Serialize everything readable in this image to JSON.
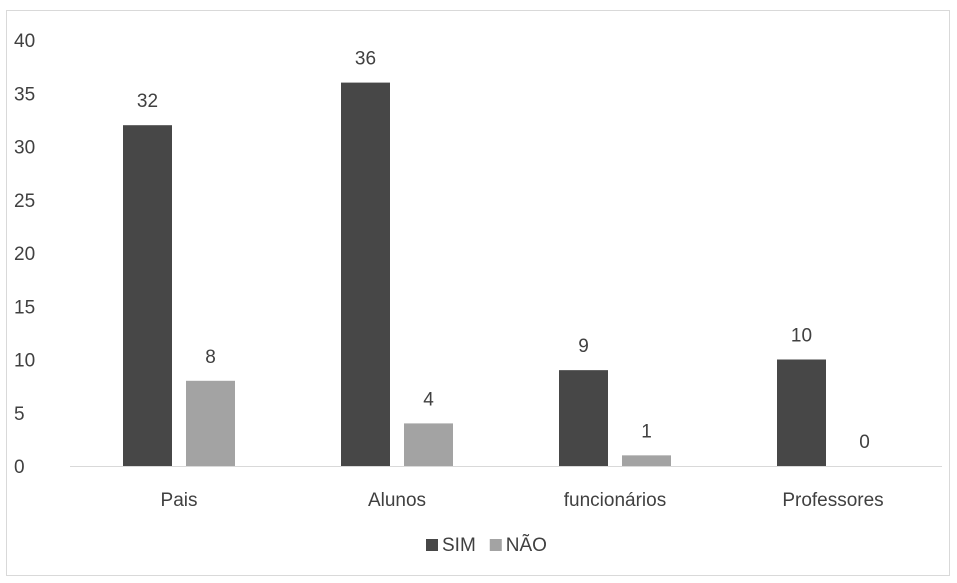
{
  "chart_data": {
    "type": "bar",
    "categories": [
      "Pais",
      "Alunos",
      "funcionários",
      "Professores"
    ],
    "series": [
      {
        "name": "SIM",
        "values": [
          32,
          36,
          9,
          10
        ],
        "color": "#474747"
      },
      {
        "name": "NÃO",
        "values": [
          8,
          4,
          1,
          0
        ],
        "color": "#a3a3a3"
      }
    ],
    "ylim": [
      0,
      40
    ],
    "yticks": [
      0,
      5,
      10,
      15,
      20,
      25,
      30,
      35,
      40
    ],
    "grid": false,
    "legend_position": "bottom",
    "axis_color": "#d9d9d9"
  }
}
